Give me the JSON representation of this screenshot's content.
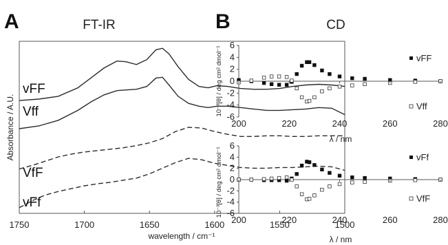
{
  "chart_data": [
    {
      "panel": "A",
      "title": "FT-IR",
      "type": "line",
      "xlabel": "wavelength / cm⁻¹",
      "ylabel": "Absorbance / A.U.",
      "xlim": [
        1750,
        1500
      ],
      "x_ticks": [
        "1750",
        "1700",
        "1650",
        "1600",
        "1550",
        "1500"
      ],
      "series": [
        {
          "name": "vFF",
          "style": "solid",
          "x": [
            1750,
            1735,
            1720,
            1705,
            1695,
            1685,
            1675,
            1668,
            1660,
            1652,
            1645,
            1640,
            1635,
            1628,
            1620,
            1612,
            1605,
            1598,
            1590,
            1580,
            1570,
            1560,
            1550,
            1540,
            1530,
            1520,
            1510,
            1500
          ],
          "y": [
            3.0,
            3.1,
            3.3,
            3.9,
            4.6,
            5.3,
            5.8,
            5.75,
            5.55,
            5.9,
            6.6,
            6.7,
            6.3,
            5.4,
            4.5,
            4.0,
            3.9,
            4.05,
            4.0,
            3.85,
            3.8,
            3.8,
            3.85,
            4.0,
            4.1,
            4.15,
            4.1,
            4.0
          ]
        },
        {
          "name": "Vff",
          "style": "solid",
          "x": [
            1750,
            1735,
            1720,
            1705,
            1695,
            1685,
            1675,
            1668,
            1660,
            1652,
            1645,
            1640,
            1635,
            1628,
            1620,
            1612,
            1605,
            1598,
            1590,
            1580,
            1570,
            1560,
            1550,
            1540,
            1530,
            1520,
            1510,
            1500
          ],
          "y": [
            1.0,
            1.2,
            1.6,
            2.3,
            2.9,
            3.4,
            3.7,
            3.75,
            3.8,
            4.0,
            4.6,
            4.65,
            4.1,
            3.3,
            2.8,
            2.6,
            2.5,
            2.6,
            2.6,
            2.5,
            2.4,
            2.3,
            2.3,
            2.35,
            2.4,
            2.5,
            2.45,
            2.0
          ]
        },
        {
          "name": "VfF",
          "style": "dashed",
          "x": [
            1750,
            1740,
            1730,
            1720,
            1710,
            1700,
            1690,
            1680,
            1670,
            1660,
            1650,
            1640,
            1630,
            1620,
            1610,
            1600,
            1590,
            1580,
            1570,
            1560,
            1550,
            1540,
            1530,
            1520,
            1510,
            1500
          ],
          "y": [
            -1.85,
            -1.6,
            -1.3,
            -1.0,
            -0.8,
            -0.65,
            -0.55,
            -0.45,
            -0.35,
            -0.2,
            0.0,
            0.3,
            0.8,
            1.1,
            1.05,
            0.8,
            0.6,
            0.45,
            0.45,
            0.5,
            0.5,
            0.45,
            0.45,
            0.5,
            0.5,
            0.5
          ]
        },
        {
          "name": "vFf",
          "style": "dashed",
          "x": [
            1750,
            1740,
            1730,
            1720,
            1710,
            1700,
            1690,
            1680,
            1670,
            1660,
            1650,
            1640,
            1630,
            1620,
            1610,
            1600,
            1590,
            1580,
            1570,
            1560,
            1550,
            1540,
            1530,
            1520,
            1510,
            1500
          ],
          "y": [
            -4.6,
            -4.1,
            -3.7,
            -3.45,
            -3.25,
            -3.05,
            -2.9,
            -2.8,
            -2.65,
            -2.5,
            -2.2,
            -1.8,
            -1.4,
            -1.1,
            -1.2,
            -1.45,
            -1.6,
            -1.75,
            -1.8,
            -1.8,
            -1.75,
            -1.75,
            -1.7,
            -1.65,
            -1.7,
            -1.95
          ]
        }
      ]
    },
    {
      "panel": "B",
      "title": "CD",
      "type": "scatter",
      "xlabel": "λ / nm",
      "ylabel": "10⁻³[θ] / deg cm² dmol⁻¹",
      "xlim": [
        200,
        280
      ],
      "ylim": [
        -6,
        6
      ],
      "x_ticks": [
        "200",
        "220",
        "240",
        "260",
        "280"
      ],
      "y_ticks": [
        "6",
        "4",
        "2",
        "0",
        "-2",
        "-4",
        "-6"
      ],
      "series": [
        {
          "name": "vFF",
          "marker": "filled-square",
          "x": [
            200,
            205,
            210,
            213,
            216,
            219,
            221,
            223,
            225,
            227,
            228,
            230,
            233,
            236,
            240,
            245,
            250,
            260,
            270,
            280
          ],
          "y": [
            0.2,
            0,
            -0.3,
            -0.5,
            -0.6,
            -0.6,
            -0.1,
            1.2,
            2.6,
            3.2,
            3.2,
            2.7,
            1.8,
            1.2,
            0.8,
            0.5,
            0.4,
            0.2,
            0.1,
            0
          ]
        },
        {
          "name": "Vff",
          "marker": "open-square",
          "x": [
            200,
            205,
            210,
            213,
            216,
            219,
            221,
            223,
            225,
            227,
            228,
            230,
            233,
            236,
            240,
            245,
            250,
            260,
            270,
            280
          ],
          "y": [
            -0.2,
            0.1,
            0.6,
            0.8,
            0.8,
            0.7,
            0.1,
            -1.2,
            -2.7,
            -3.4,
            -3.3,
            -2.7,
            -1.7,
            -1.2,
            -0.9,
            -0.7,
            -0.5,
            -0.3,
            -0.1,
            0
          ]
        },
        {
          "name": "vFf",
          "marker": "filled-square",
          "x": [
            200,
            205,
            210,
            213,
            216,
            219,
            221,
            223,
            225,
            227,
            228,
            230,
            233,
            236,
            240,
            245,
            250,
            260,
            270,
            280
          ],
          "y": [
            0,
            0,
            -0.1,
            -0.1,
            -0.1,
            -0.2,
            0.2,
            1.0,
            2.5,
            3.2,
            3.1,
            2.6,
            1.8,
            1.2,
            0.7,
            0.4,
            0.3,
            0.2,
            0.1,
            0
          ]
        },
        {
          "name": "VfF",
          "marker": "open-square",
          "x": [
            200,
            205,
            210,
            213,
            216,
            219,
            221,
            223,
            225,
            227,
            228,
            230,
            233,
            236,
            240,
            245,
            250,
            260,
            270,
            280
          ],
          "y": [
            0,
            0,
            0.1,
            0.2,
            0.3,
            0.4,
            0,
            -1.2,
            -2.6,
            -3.5,
            -3.4,
            -2.8,
            -1.8,
            -1.2,
            -0.8,
            -0.5,
            -0.4,
            -0.2,
            -0.1,
            0
          ]
        }
      ]
    }
  ]
}
